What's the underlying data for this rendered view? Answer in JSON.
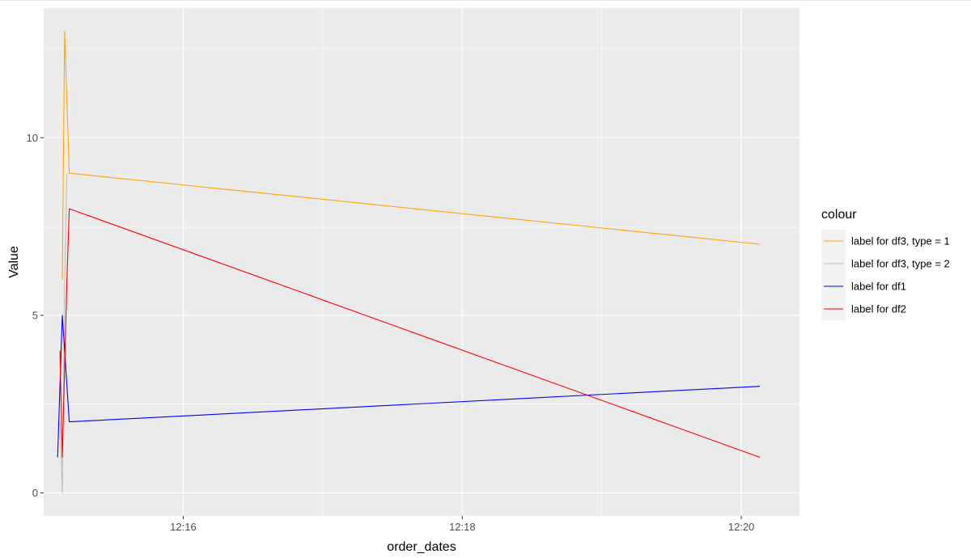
{
  "chart_data": {
    "type": "line",
    "title": "",
    "xlabel": "order_dates",
    "ylabel": "Value",
    "x_ticks": [
      "12:16",
      "12:18",
      "12:20"
    ],
    "y_ticks": [
      0,
      5,
      10
    ],
    "xlim": [
      "12:15:00",
      "12:20:25"
    ],
    "ylim": [
      -0.65,
      13.65
    ],
    "grid": true,
    "legend": {
      "title": "colour",
      "position": "right"
    },
    "series": [
      {
        "name": "label for df3, type = 1",
        "color": "#FFA500",
        "points": [
          [
            "12:15:08",
            6
          ],
          [
            "12:15:09",
            13
          ],
          [
            "12:15:11",
            9
          ],
          [
            "12:20:08",
            7
          ]
        ]
      },
      {
        "name": "label for df3, type = 2",
        "color": "#BEBEBE",
        "points": [
          [
            "12:15:07",
            2
          ],
          [
            "12:15:08",
            0
          ],
          [
            "12:15:09",
            6
          ],
          [
            "12:15:10",
            9
          ]
        ]
      },
      {
        "name": "label for df1",
        "color": "#0000FF",
        "points": [
          [
            "12:15:06",
            1
          ],
          [
            "12:15:08",
            5
          ],
          [
            "12:15:09",
            4
          ],
          [
            "12:15:11",
            2
          ],
          [
            "12:20:08",
            3
          ]
        ]
      },
      {
        "name": "label for df2",
        "color": "#FF0000",
        "points": [
          [
            "12:15:07",
            4
          ],
          [
            "12:15:08",
            1
          ],
          [
            "12:15:10",
            6
          ],
          [
            "12:15:11",
            8
          ],
          [
            "12:20:08",
            1
          ]
        ]
      }
    ]
  }
}
